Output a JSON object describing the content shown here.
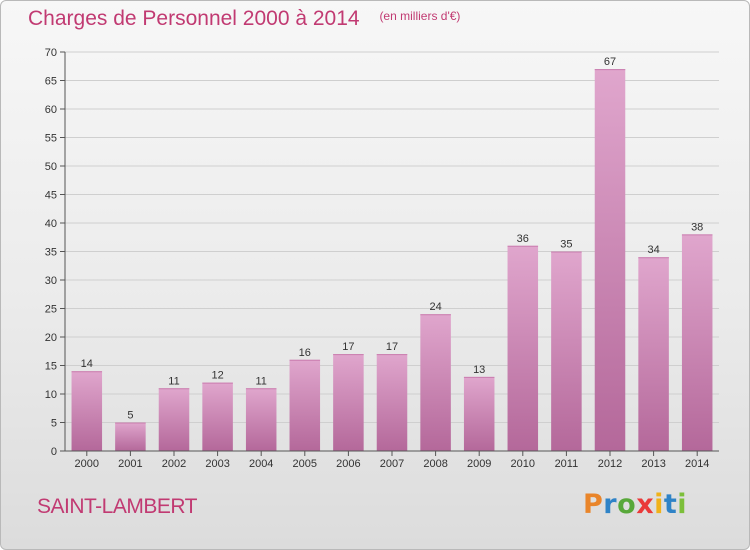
{
  "header": {
    "title": "Charges de Personnel 2000 à 2014",
    "subtitle": "(en milliers d'€)"
  },
  "footer": {
    "place": "SAINT-LAMBERT",
    "logo": "Proxiti"
  },
  "colors": {
    "title": "#c13a72",
    "bar_top": "#e0a6cd",
    "bar_bottom": "#b4689a",
    "logo_letters": [
      "#e9852a",
      "#2f83c7",
      "#58a83a",
      "#ea3a3a",
      "#f0b21a",
      "#2f83c7",
      "#7cbf3a"
    ]
  },
  "chart_data": {
    "type": "bar",
    "categories": [
      "2000",
      "2001",
      "2002",
      "2003",
      "2004",
      "2005",
      "2006",
      "2007",
      "2008",
      "2009",
      "2010",
      "2011",
      "2012",
      "2013",
      "2014"
    ],
    "values": [
      14,
      5,
      11,
      12,
      11,
      16,
      17,
      17,
      24,
      13,
      36,
      35,
      67,
      34,
      38
    ],
    "ylim": [
      0,
      70
    ],
    "yticks": [
      0,
      5,
      10,
      15,
      20,
      25,
      30,
      35,
      40,
      45,
      50,
      55,
      60,
      65,
      70
    ],
    "grid": true,
    "title": "Charges de Personnel 2000 à 2014",
    "xlabel": "",
    "ylabel": ""
  }
}
